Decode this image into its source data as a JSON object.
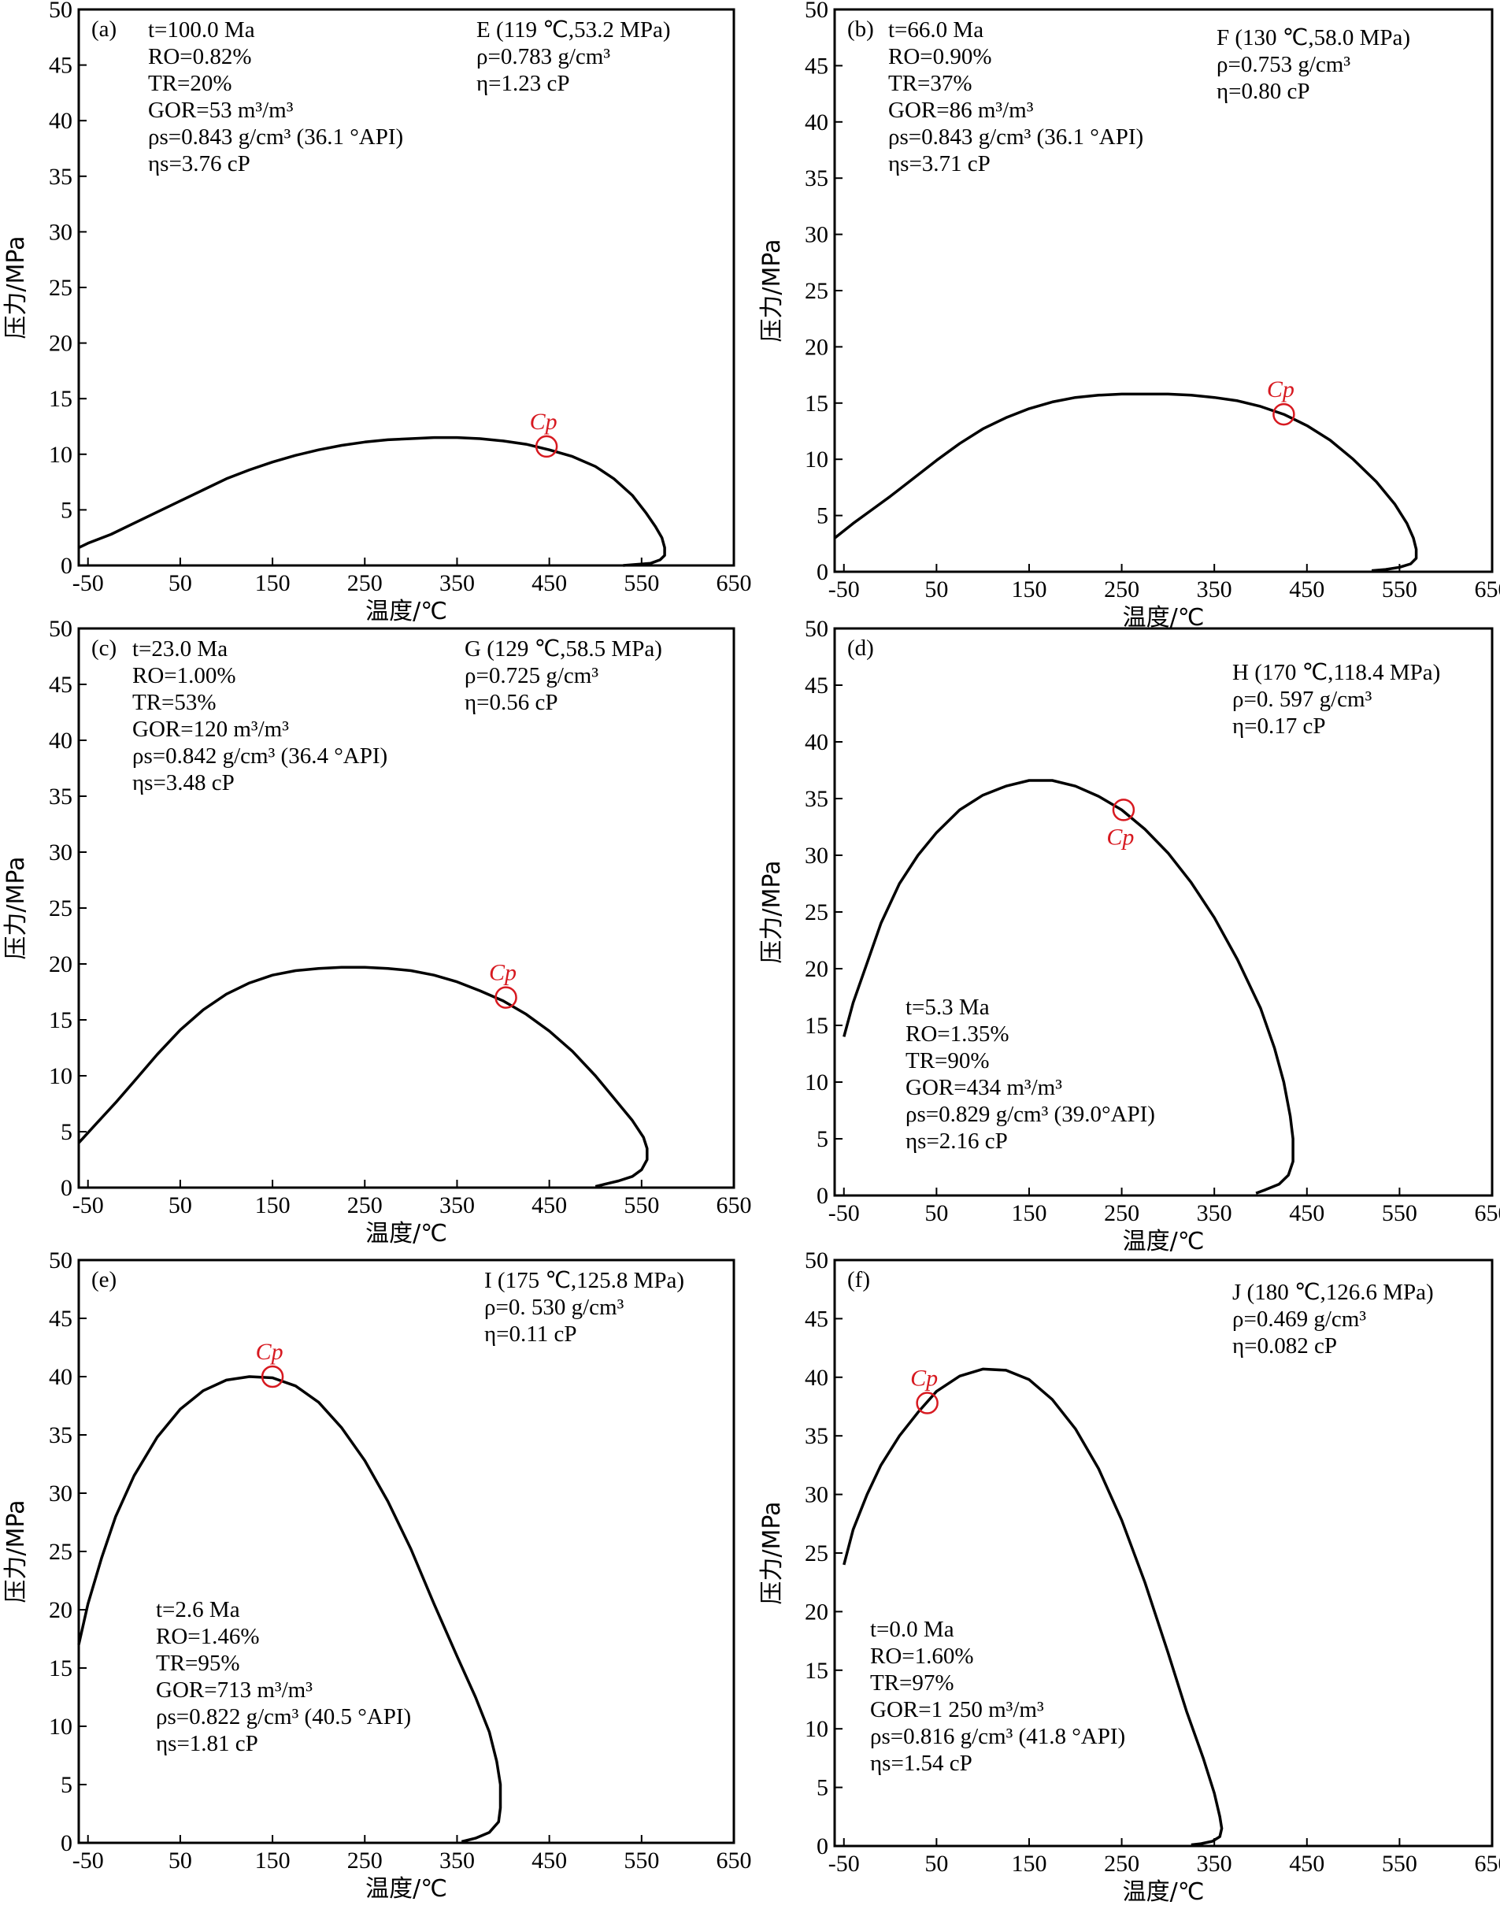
{
  "colors": {
    "curve": "#000000",
    "cp": "#d71920",
    "axis": "#000000"
  },
  "chart_data": [
    {
      "type": "line",
      "panel": "(a)",
      "xlabel": "温度/℃",
      "ylabel": "压力/MPa",
      "xlim": [
        -60,
        650
      ],
      "ylim": [
        0,
        50
      ],
      "xticks": [
        "-50",
        "50",
        "150",
        "250",
        "350",
        "450",
        "550",
        "650"
      ],
      "yticks": [
        "0",
        "5",
        "10",
        "15",
        "20",
        "25",
        "30",
        "35",
        "40",
        "45",
        "50"
      ],
      "left_lines": [
        "t=100.0 Ma",
        "RO=0.82%",
        "TR=20%",
        "GOR=53 m³/m³",
        "ρs=0.843 g/cm³ (36.1 °API)",
        "ηs=3.76 cP"
      ],
      "right_lines": [
        "E (119 ℃,53.2 MPa)",
        "ρ=0.783  g/cm³",
        "η=1.23 cP"
      ],
      "cp": {
        "label": "Cp",
        "x": 447,
        "y": 10.7
      },
      "series": [
        {
          "x": [
            -60,
            -50,
            -25,
            0,
            25,
            50,
            75,
            100,
            125,
            150,
            175,
            200,
            225,
            250,
            275,
            300,
            325,
            350,
            375,
            400,
            425,
            450,
            475,
            500,
            520,
            540,
            555,
            565,
            572,
            575,
            575,
            570,
            560,
            545,
            530
          ],
          "y": [
            1.6,
            2.0,
            2.8,
            3.8,
            4.8,
            5.8,
            6.8,
            7.8,
            8.6,
            9.3,
            9.9,
            10.4,
            10.8,
            11.1,
            11.3,
            11.4,
            11.5,
            11.5,
            11.4,
            11.2,
            10.9,
            10.4,
            9.8,
            8.9,
            7.8,
            6.3,
            4.7,
            3.5,
            2.5,
            1.6,
            0.9,
            0.5,
            0.2,
            0.1,
            0.0
          ]
        }
      ]
    },
    {
      "type": "line",
      "panel": "(b)",
      "xlabel": "温度/℃",
      "ylabel": "压力/MPa",
      "xlim": [
        -60,
        650
      ],
      "ylim": [
        0,
        50
      ],
      "xticks": [
        "-50",
        "50",
        "150",
        "250",
        "350",
        "450",
        "550",
        "650"
      ],
      "yticks": [
        "0",
        "5",
        "10",
        "15",
        "20",
        "25",
        "30",
        "35",
        "40",
        "45",
        "50"
      ],
      "left_lines": [
        "t=66.0 Ma",
        "RO=0.90%",
        "TR=37%",
        "GOR=86 m³/m³",
        "ρs=0.843 g/cm³ (36.1 °API)",
        "ηs=3.71 cP"
      ],
      "right_lines": [
        "F (130 ℃,58.0 MPa)",
        "ρ=0.753  g/cm³",
        "η=0.80 cP"
      ],
      "cp": {
        "label": "Cp",
        "x": 425,
        "y": 14.0
      },
      "series": [
        {
          "x": [
            -60,
            -40,
            -20,
            0,
            25,
            50,
            75,
            100,
            125,
            150,
            175,
            200,
            225,
            250,
            275,
            300,
            325,
            350,
            375,
            400,
            425,
            450,
            475,
            500,
            525,
            545,
            558,
            565,
            568,
            568,
            562,
            550,
            535,
            520
          ],
          "y": [
            3.0,
            4.3,
            5.5,
            6.7,
            8.3,
            9.9,
            11.4,
            12.7,
            13.7,
            14.5,
            15.1,
            15.5,
            15.7,
            15.8,
            15.8,
            15.8,
            15.7,
            15.5,
            15.2,
            14.7,
            14.0,
            13.0,
            11.7,
            10.0,
            8.0,
            6.0,
            4.3,
            3.0,
            2.0,
            1.2,
            0.7,
            0.4,
            0.2,
            0.1
          ]
        }
      ]
    },
    {
      "type": "line",
      "panel": "(c)",
      "xlabel": "温度/℃",
      "ylabel": "压力/MPa",
      "xlim": [
        -60,
        650
      ],
      "ylim": [
        0,
        50
      ],
      "xticks": [
        "-50",
        "50",
        "150",
        "250",
        "350",
        "450",
        "550",
        "650"
      ],
      "yticks": [
        "0",
        "5",
        "10",
        "15",
        "20",
        "25",
        "30",
        "35",
        "40",
        "45",
        "50"
      ],
      "left_lines": [
        "t=23.0 Ma",
        "RO=1.00%",
        "TR=53%",
        "GOR=120 m³/m³",
        "ρs=0.842 g/cm³ (36.4 °API)",
        "ηs=3.48 cP"
      ],
      "right_lines": [
        "G (129 ℃,58.5 MPa)",
        "ρ=0.725  g/cm³",
        "η=0.56 cP"
      ],
      "cp": {
        "label": "Cp",
        "x": 403,
        "y": 17.0
      },
      "series": [
        {
          "x": [
            -60,
            -40,
            -20,
            0,
            25,
            50,
            75,
            100,
            125,
            150,
            175,
            200,
            225,
            250,
            275,
            300,
            325,
            350,
            375,
            400,
            425,
            450,
            475,
            500,
            520,
            540,
            552,
            556,
            556,
            550,
            540,
            525,
            510,
            500
          ],
          "y": [
            4.0,
            5.8,
            7.6,
            9.5,
            11.9,
            14.1,
            15.9,
            17.3,
            18.3,
            19.0,
            19.4,
            19.6,
            19.7,
            19.7,
            19.6,
            19.4,
            19.0,
            18.4,
            17.6,
            16.7,
            15.5,
            14.0,
            12.2,
            10.0,
            8.0,
            6.0,
            4.5,
            3.5,
            2.5,
            1.6,
            1.0,
            0.6,
            0.3,
            0.1
          ]
        }
      ]
    },
    {
      "type": "line",
      "panel": "(d)",
      "xlabel": "温度/℃",
      "ylabel": "压力/MPa",
      "xlim": [
        -60,
        650
      ],
      "ylim": [
        0,
        50
      ],
      "xticks": [
        "-50",
        "50",
        "150",
        "250",
        "350",
        "450",
        "550",
        "650"
      ],
      "yticks": [
        "0",
        "5",
        "10",
        "15",
        "20",
        "25",
        "30",
        "35",
        "40",
        "45",
        "50"
      ],
      "left_lines": [
        "t=5.3 Ma",
        "RO=1.35%",
        "TR=90%",
        "GOR=434 m³/m³",
        "ρs=0.829 g/cm³ (39.0°API)",
        "ηs=2.16 cP"
      ],
      "right_lines": [
        "H (170 ℃,118.4 MPa)",
        "ρ=0. 597  g/cm³",
        "η=0.17 cP"
      ],
      "cp": {
        "label": "Cp",
        "x": 252,
        "y": 34.0
      },
      "series": [
        {
          "x": [
            -50,
            -40,
            -25,
            -10,
            10,
            30,
            50,
            75,
            100,
            125,
            150,
            175,
            200,
            225,
            250,
            275,
            300,
            325,
            350,
            375,
            400,
            415,
            425,
            432,
            435,
            435,
            430,
            420,
            405,
            395
          ],
          "y": [
            14.0,
            17.0,
            20.5,
            24.0,
            27.5,
            30.0,
            32.0,
            34.0,
            35.3,
            36.1,
            36.6,
            36.6,
            36.1,
            35.2,
            34.0,
            32.3,
            30.2,
            27.6,
            24.5,
            20.8,
            16.5,
            13.0,
            10.0,
            7.0,
            5.0,
            3.0,
            1.8,
            1.0,
            0.5,
            0.2
          ]
        }
      ]
    },
    {
      "type": "line",
      "panel": "(e)",
      "xlabel": "温度/℃",
      "ylabel": "压力/MPa",
      "xlim": [
        -60,
        650
      ],
      "ylim": [
        0,
        50
      ],
      "xticks": [
        "-50",
        "50",
        "150",
        "250",
        "350",
        "450",
        "550",
        "650"
      ],
      "yticks": [
        "0",
        "5",
        "10",
        "15",
        "20",
        "25",
        "30",
        "35",
        "40",
        "45",
        "50"
      ],
      "left_lines": [
        "t=2.6 Ma",
        "RO=1.46%",
        "TR=95%",
        "GOR=713 m³/m³",
        "ρs=0.822 g/cm³ (40.5 °API)",
        "ηs=1.81 cP"
      ],
      "right_lines": [
        "I (175 ℃,125.8 MPa)",
        "ρ=0. 530  g/cm³",
        "η=0.11 cP"
      ],
      "cp": {
        "label": "Cp",
        "x": 150,
        "y": 40.0
      },
      "series": [
        {
          "x": [
            -60,
            -50,
            -35,
            -20,
            0,
            25,
            50,
            75,
            100,
            125,
            150,
            175,
            200,
            225,
            250,
            275,
            300,
            325,
            350,
            370,
            385,
            393,
            397,
            397,
            395,
            385,
            370,
            355
          ],
          "y": [
            17.0,
            20.5,
            24.5,
            28.0,
            31.5,
            34.8,
            37.2,
            38.8,
            39.7,
            40.0,
            39.9,
            39.2,
            37.8,
            35.6,
            32.8,
            29.3,
            25.2,
            20.5,
            16.0,
            12.5,
            9.5,
            7.0,
            5.0,
            3.0,
            1.8,
            0.9,
            0.4,
            0.1
          ]
        }
      ]
    },
    {
      "type": "line",
      "panel": "(f)",
      "xlabel": "温度/℃",
      "ylabel": "压力/MPa",
      "xlim": [
        -60,
        650
      ],
      "ylim": [
        0,
        50
      ],
      "xticks": [
        "-50",
        "50",
        "150",
        "250",
        "350",
        "450",
        "550",
        "650"
      ],
      "yticks": [
        "0",
        "5",
        "10",
        "15",
        "20",
        "25",
        "30",
        "35",
        "40",
        "45",
        "50"
      ],
      "left_lines": [
        "t=0.0 Ma",
        "RO=1.60%",
        "TR=97%",
        "GOR=1 250 m³/m³",
        "ρs=0.816 g/cm³ (41.8 °API)",
        "ηs=1.54 cP"
      ],
      "right_lines": [
        "J (180 ℃,126.6 MPa)",
        "ρ=0.469  g/cm³",
        "η=0.082 cP"
      ],
      "cp": {
        "label": "Cp",
        "x": 40,
        "y": 37.8
      },
      "series": [
        {
          "x": [
            -50,
            -40,
            -25,
            -10,
            10,
            30,
            50,
            75,
            100,
            125,
            150,
            175,
            200,
            225,
            250,
            275,
            300,
            320,
            338,
            350,
            356,
            358,
            356,
            348,
            336,
            325
          ],
          "y": [
            24.0,
            27.0,
            30.0,
            32.5,
            35.0,
            37.0,
            38.8,
            40.1,
            40.7,
            40.6,
            39.8,
            38.1,
            35.6,
            32.2,
            27.8,
            22.5,
            16.5,
            11.5,
            7.5,
            4.5,
            2.5,
            1.5,
            0.8,
            0.4,
            0.2,
            0.1
          ]
        }
      ]
    }
  ]
}
